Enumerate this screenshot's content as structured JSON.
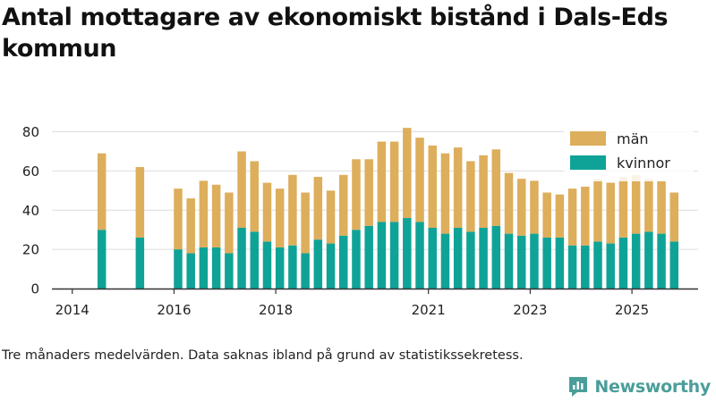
{
  "title": "Antal mottagare av ekonomiskt bistånd i Dals-Eds kommun",
  "note": "Tre månaders medelvärden. Data saknas ibland på grund av statistikssekretess.",
  "brand": {
    "name": "Newsworthy",
    "color": "#4a9e99"
  },
  "colors": {
    "kvinnor": "#0fa397",
    "man": "#ddae5b",
    "axis": "#333333",
    "grid": "#dddddd"
  },
  "chart_data": {
    "type": "bar",
    "stacked": true,
    "title": "Antal mottagare av ekonomiskt bistånd i Dals-Eds kommun",
    "xlabel": "",
    "ylabel": "",
    "ylim": [
      0,
      88
    ],
    "yticks": [
      0,
      20,
      40,
      60,
      80
    ],
    "xlim": [
      2013.6,
      2026.3
    ],
    "xticks": [
      2014,
      2016,
      2018,
      2021,
      2023,
      2025
    ],
    "legend": {
      "position": "top-right",
      "entries": [
        "män",
        "kvinnor"
      ]
    },
    "x": [
      2014.58,
      2015.33,
      2016.08,
      2016.33,
      2016.58,
      2016.83,
      2017.08,
      2017.33,
      2017.58,
      2017.83,
      2018.08,
      2018.33,
      2018.58,
      2018.83,
      2019.08,
      2019.33,
      2019.58,
      2019.83,
      2020.08,
      2020.33,
      2020.58,
      2020.83,
      2021.08,
      2021.33,
      2021.58,
      2021.83,
      2022.08,
      2022.33,
      2022.58,
      2022.83,
      2023.08,
      2023.33,
      2023.58,
      2023.83,
      2024.08,
      2024.33,
      2024.58,
      2024.83,
      2025.08,
      2025.33,
      2025.58,
      2025.83
    ],
    "series": [
      {
        "name": "kvinnor",
        "values": [
          30,
          26,
          20,
          18,
          21,
          21,
          18,
          31,
          29,
          24,
          21,
          22,
          18,
          25,
          23,
          27,
          30,
          32,
          34,
          34,
          36,
          34,
          31,
          28,
          31,
          29,
          31,
          32,
          28,
          27,
          28,
          26,
          26,
          22,
          22,
          24,
          23,
          26,
          28,
          29,
          28,
          24
        ]
      },
      {
        "name": "män",
        "values": [
          39,
          36,
          31,
          28,
          34,
          32,
          31,
          39,
          36,
          30,
          30,
          36,
          31,
          32,
          27,
          31,
          36,
          34,
          41,
          41,
          46,
          43,
          42,
          41,
          41,
          36,
          37,
          39,
          31,
          29,
          27,
          23,
          22,
          29,
          30,
          32,
          31,
          31,
          30,
          27,
          27,
          25
        ]
      }
    ]
  }
}
